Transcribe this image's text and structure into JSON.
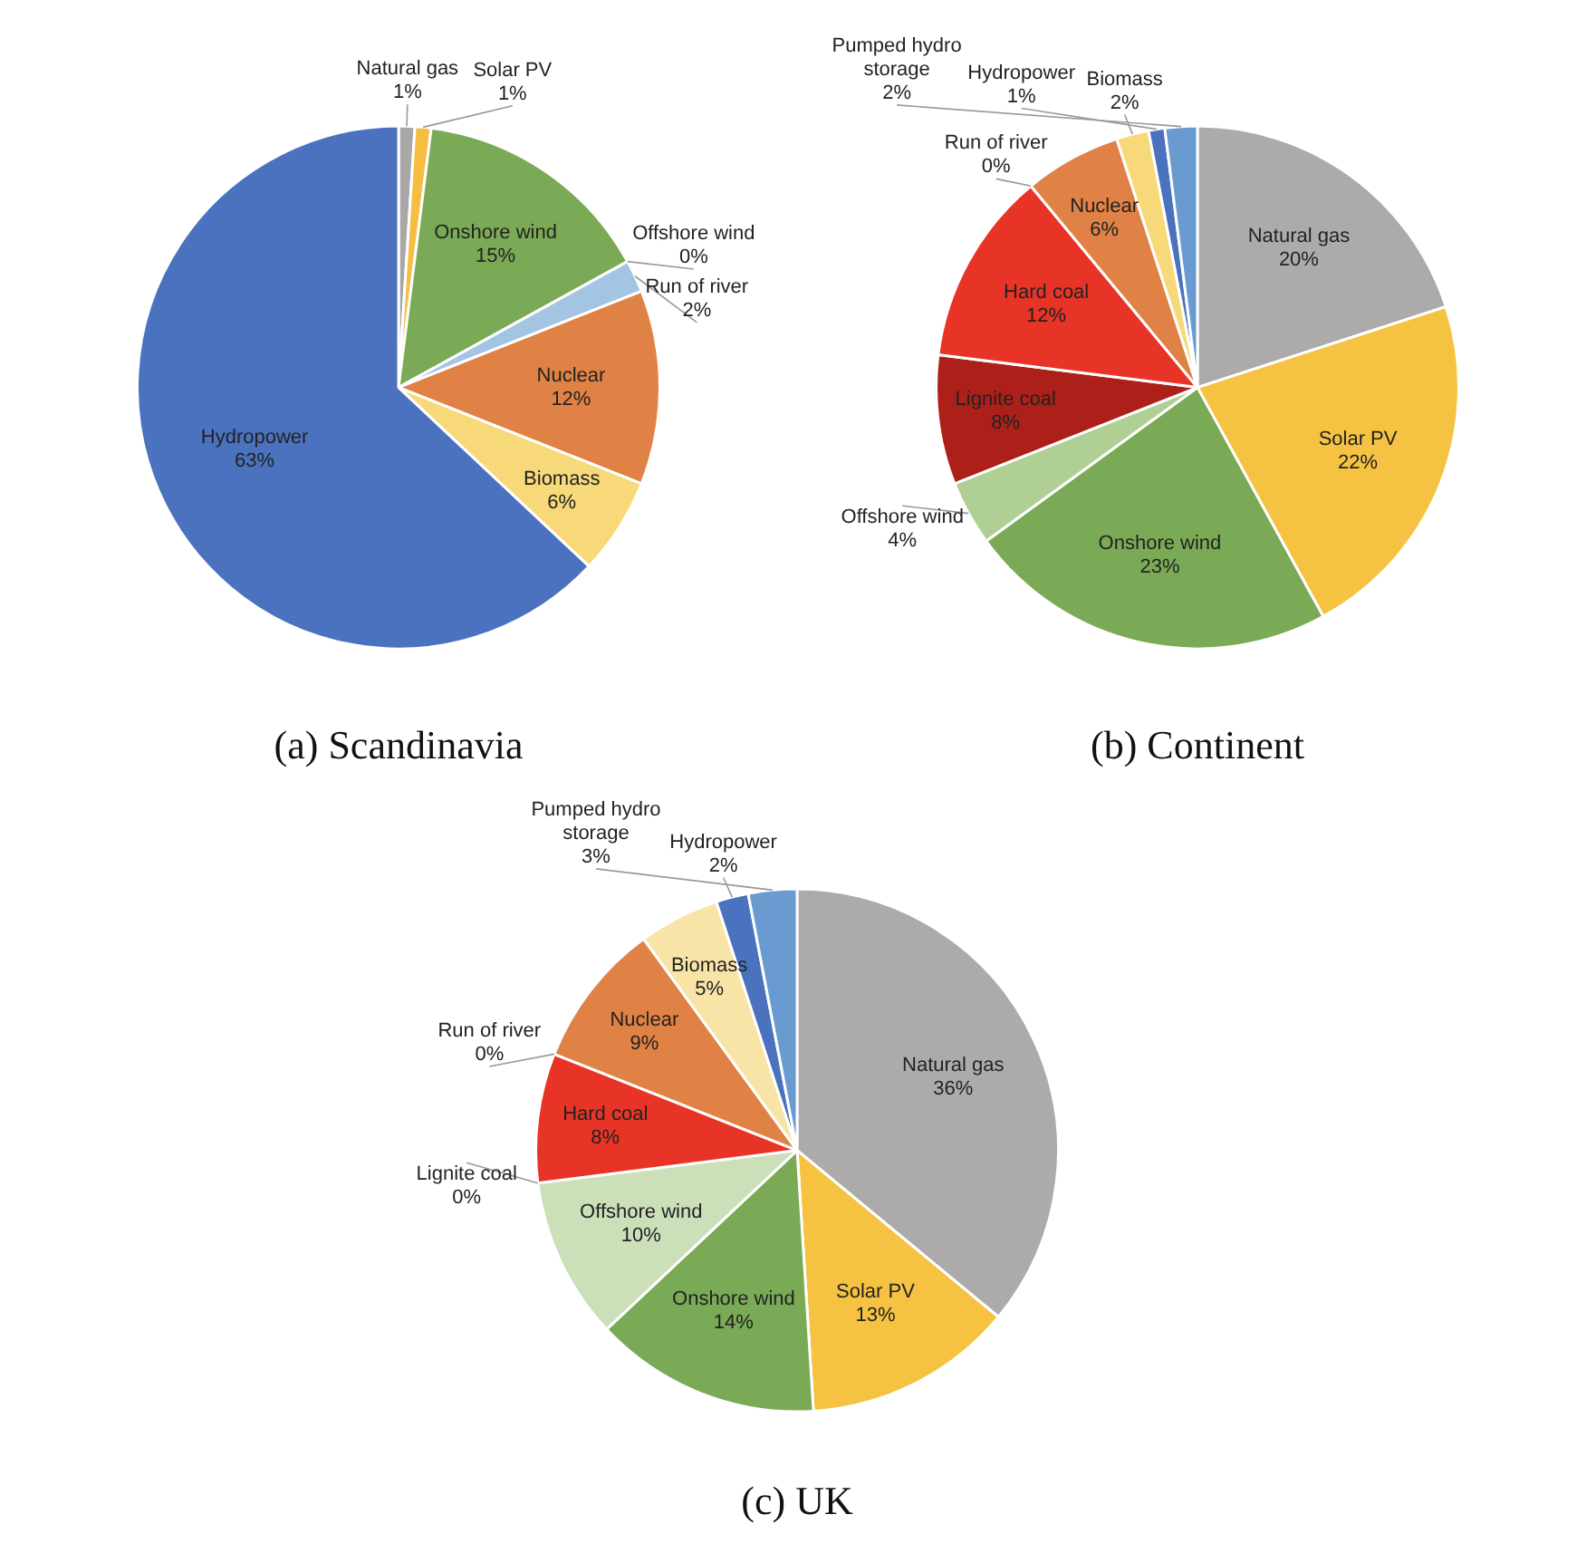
{
  "chart_data": [
    {
      "type": "pie",
      "title": "(a) Scandinavia",
      "categories": [
        "Natural gas",
        "Solar PV",
        "Onshore wind",
        "Offshore wind",
        "Run of river",
        "Nuclear",
        "Biomass",
        "Hydropower"
      ],
      "values": [
        1,
        1,
        15,
        0,
        2,
        12,
        6,
        63
      ],
      "colors": [
        "#a9a8a7",
        "#f5bd42",
        "#7aaa55",
        "#b5d49b",
        "#a3c4e3",
        "#e08245",
        "#f7d979",
        "#4a72be"
      ],
      "value_labels": [
        "1%",
        "1%",
        "15%",
        "0%",
        "2%",
        "12%",
        "6%",
        "63%"
      ]
    },
    {
      "type": "pie",
      "title": "(b) Continent",
      "categories": [
        "Natural gas",
        "Solar PV",
        "Onshore wind",
        "Offshore wind",
        "Lignite coal",
        "Hard coal",
        "Run of river",
        "Nuclear",
        "Biomass",
        "Hydropower",
        "Pumped hydro storage"
      ],
      "values": [
        20,
        22,
        23,
        4,
        8,
        12,
        0,
        6,
        2,
        1,
        2
      ],
      "colors": [
        "#acabaa",
        "#f5c242",
        "#7aaa55",
        "#afcf94",
        "#ad2019",
        "#e83426",
        "#2f4f8a",
        "#e08245",
        "#f7d979",
        "#4a72be",
        "#6a9bd0"
      ],
      "value_labels": [
        "20%",
        "22%",
        "23%",
        "4%",
        "8%",
        "12%",
        "0%",
        "6%",
        "2%",
        "1%",
        "2%"
      ]
    },
    {
      "type": "pie",
      "title": "(c) UK",
      "categories": [
        "Natural gas",
        "Solar PV",
        "Onshore wind",
        "Offshore wind",
        "Lignite coal",
        "Hard coal",
        "Run of river",
        "Nuclear",
        "Biomass",
        "Hydropower",
        "Pumped hydro storage"
      ],
      "values": [
        36,
        13,
        14,
        10,
        0,
        8,
        0,
        9,
        5,
        2,
        3
      ],
      "colors": [
        "#acabaa",
        "#f5c242",
        "#7aaa55",
        "#cbdfb9",
        "#ad2019",
        "#e83426",
        "#7fa8d8",
        "#e08245",
        "#f9e4a7",
        "#4a72be",
        "#6a9bd0"
      ],
      "value_labels": [
        "36%",
        "13%",
        "14%",
        "10%",
        "0%",
        "8%",
        "0%",
        "9%",
        "5%",
        "2%",
        "3%"
      ]
    }
  ]
}
